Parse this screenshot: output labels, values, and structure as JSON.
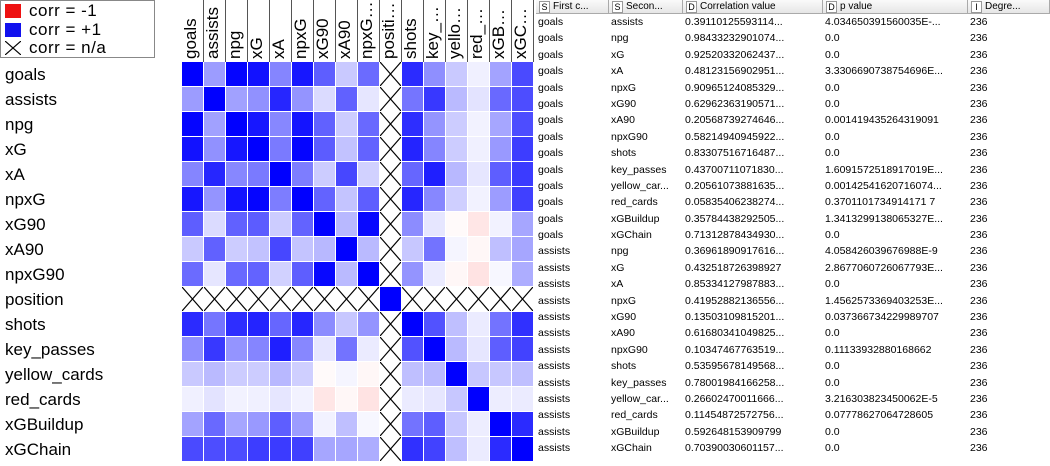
{
  "legend": [
    {
      "label": "corr = -1",
      "color": "#ee1111",
      "kind": "swatch"
    },
    {
      "label": "corr = +1",
      "color": "#1111ee",
      "kind": "swatch"
    },
    {
      "label": "corr = n/a",
      "color": "#000000",
      "kind": "cross"
    }
  ],
  "matrix": {
    "column_headers": [
      "goals",
      "assists",
      "npg",
      "xG",
      "xA",
      "npxG",
      "xG90",
      "xA90",
      "npxG90",
      "position",
      "shots",
      "key_passes",
      "yellow_cards",
      "red_cards",
      "xGBuildup",
      "xGChain"
    ],
    "row_labels": [
      "goals",
      "assists",
      "npg",
      "xG",
      "xA",
      "npxG",
      "xG90",
      "xA90",
      "npxG90",
      "position",
      "shots",
      "key_passes",
      "yellow_cards",
      "red_cards",
      "xGBuildup",
      "xGChain"
    ],
    "values": [
      [
        1.0,
        0.39,
        0.98,
        0.93,
        0.48,
        0.91,
        0.63,
        0.21,
        0.58,
        null,
        0.83,
        0.44,
        0.21,
        0.06,
        0.36,
        0.71
      ],
      [
        0.39,
        1.0,
        0.37,
        0.43,
        0.85,
        0.42,
        0.14,
        0.62,
        0.1,
        null,
        0.54,
        0.78,
        0.27,
        0.11,
        0.59,
        0.7
      ],
      [
        0.98,
        0.37,
        1.0,
        0.91,
        0.47,
        0.92,
        0.62,
        0.2,
        0.59,
        null,
        0.82,
        0.42,
        0.2,
        0.05,
        0.35,
        0.7
      ],
      [
        0.93,
        0.43,
        0.91,
        1.0,
        0.52,
        0.98,
        0.64,
        0.24,
        0.61,
        null,
        0.86,
        0.48,
        0.2,
        0.06,
        0.4,
        0.76
      ],
      [
        0.48,
        0.85,
        0.47,
        0.52,
        1.0,
        0.51,
        0.2,
        0.72,
        0.18,
        null,
        0.6,
        0.88,
        0.28,
        0.1,
        0.63,
        0.77
      ],
      [
        0.91,
        0.42,
        0.92,
        0.98,
        0.51,
        1.0,
        0.61,
        0.23,
        0.63,
        null,
        0.85,
        0.47,
        0.19,
        0.05,
        0.39,
        0.75
      ],
      [
        0.63,
        0.14,
        0.62,
        0.64,
        0.2,
        0.61,
        1.0,
        0.28,
        0.97,
        null,
        0.45,
        0.1,
        -0.02,
        -0.1,
        0.05,
        0.35
      ],
      [
        0.21,
        0.62,
        0.2,
        0.24,
        0.72,
        0.23,
        0.28,
        1.0,
        0.27,
        null,
        0.22,
        0.55,
        0.04,
        -0.03,
        0.25,
        0.35
      ],
      [
        0.58,
        0.1,
        0.59,
        0.61,
        0.18,
        0.63,
        0.97,
        0.27,
        1.0,
        null,
        0.42,
        0.08,
        -0.03,
        -0.11,
        0.03,
        0.32
      ],
      [
        null,
        null,
        null,
        null,
        null,
        null,
        null,
        null,
        null,
        1.0,
        null,
        null,
        null,
        null,
        null,
        null
      ],
      [
        0.83,
        0.54,
        0.82,
        0.86,
        0.6,
        0.85,
        0.45,
        0.22,
        0.42,
        null,
        1.0,
        0.68,
        0.25,
        0.08,
        0.55,
        0.81
      ],
      [
        0.44,
        0.78,
        0.42,
        0.48,
        0.88,
        0.47,
        0.1,
        0.55,
        0.08,
        null,
        0.68,
        1.0,
        0.27,
        0.1,
        0.63,
        0.74
      ],
      [
        0.21,
        0.27,
        0.2,
        0.2,
        0.28,
        0.19,
        -0.02,
        0.04,
        -0.03,
        null,
        0.25,
        0.27,
        1.0,
        0.22,
        0.22,
        0.25
      ],
      [
        0.06,
        0.11,
        0.05,
        0.06,
        0.1,
        0.05,
        -0.1,
        -0.03,
        -0.11,
        null,
        0.08,
        0.1,
        0.22,
        1.0,
        0.07,
        0.08
      ],
      [
        0.36,
        0.59,
        0.35,
        0.4,
        0.63,
        0.39,
        0.05,
        0.25,
        0.03,
        null,
        0.55,
        0.63,
        0.22,
        0.07,
        1.0,
        0.83
      ],
      [
        0.71,
        0.7,
        0.7,
        0.76,
        0.77,
        0.75,
        0.35,
        0.35,
        0.32,
        null,
        0.81,
        0.74,
        0.25,
        0.08,
        0.83,
        1.0
      ]
    ]
  },
  "table": {
    "headers": [
      {
        "badge": "S",
        "label": "First c..."
      },
      {
        "badge": "S",
        "label": "Secon..."
      },
      {
        "badge": "D",
        "label": "Correlation value"
      },
      {
        "badge": "D",
        "label": "p value"
      },
      {
        "badge": "I",
        "label": "Degre..."
      }
    ],
    "rows": [
      [
        "goals",
        "assists",
        "0.39110125593114...",
        "4.034650391560035E-...",
        "236"
      ],
      [
        "goals",
        "npg",
        "0.98433232901074...",
        "0.0",
        "236"
      ],
      [
        "goals",
        "xG",
        "0.92520332062437...",
        "0.0",
        "236"
      ],
      [
        "goals",
        "xA",
        "0.48123156902951...",
        "3.3306690738754696E...",
        "236"
      ],
      [
        "goals",
        "npxG",
        "0.90965124085329...",
        "0.0",
        "236"
      ],
      [
        "goals",
        "xG90",
        "0.62962363190571...",
        "0.0",
        "236"
      ],
      [
        "goals",
        "xA90",
        "0.20568739274646...",
        "0.001419435264319091",
        "236"
      ],
      [
        "goals",
        "npxG90",
        "0.58214940945922...",
        "0.0",
        "236"
      ],
      [
        "goals",
        "shots",
        "0.83307516716487...",
        "0.0",
        "236"
      ],
      [
        "goals",
        "key_passes",
        "0.43700711071830...",
        "1.6091572518917019E...",
        "236"
      ],
      [
        "goals",
        "yellow_car...",
        "0.20561073881635...",
        "0.00142541620716074...",
        "236"
      ],
      [
        "goals",
        "red_cards",
        "0.05835406238274...",
        "0.3701101734914171 7",
        "236"
      ],
      [
        "goals",
        "xGBuildup",
        "0.35784438292505...",
        "1.3413299138065327E...",
        "236"
      ],
      [
        "goals",
        "xGChain",
        "0.71312878434930...",
        "0.0",
        "236"
      ],
      [
        "assists",
        "npg",
        "0.36961890917616...",
        "4.058426039676988E-9",
        "236"
      ],
      [
        "assists",
        "xG",
        "0.432518726398927",
        "2.8677060726067793E...",
        "236"
      ],
      [
        "assists",
        "xA",
        "0.85334127987883...",
        "0.0",
        "236"
      ],
      [
        "assists",
        "npxG",
        "0.41952882136556...",
        "1.4562573369403253E...",
        "236"
      ],
      [
        "assists",
        "xG90",
        "0.13503109815201...",
        "0.037366734229989707",
        "236"
      ],
      [
        "assists",
        "xA90",
        "0.61680341049825...",
        "0.0",
        "236"
      ],
      [
        "assists",
        "npxG90",
        "0.10347467763519...",
        "0.11133932880168662",
        "236"
      ],
      [
        "assists",
        "shots",
        "0.53595678149568...",
        "0.0",
        "236"
      ],
      [
        "assists",
        "key_passes",
        "0.78001984166258...",
        "0.0",
        "236"
      ],
      [
        "assists",
        "yellow_car...",
        "0.26602470011666...",
        "3.216303823450062E-5",
        "236"
      ],
      [
        "assists",
        "red_cards",
        "0.11454872572756...",
        "0.07778627064728605",
        "236"
      ],
      [
        "assists",
        "xGBuildup",
        "0.592648153909799",
        "0.0",
        "236"
      ],
      [
        "assists",
        "xGChain",
        "0.70390030601157...",
        "0.0",
        "236"
      ]
    ]
  }
}
